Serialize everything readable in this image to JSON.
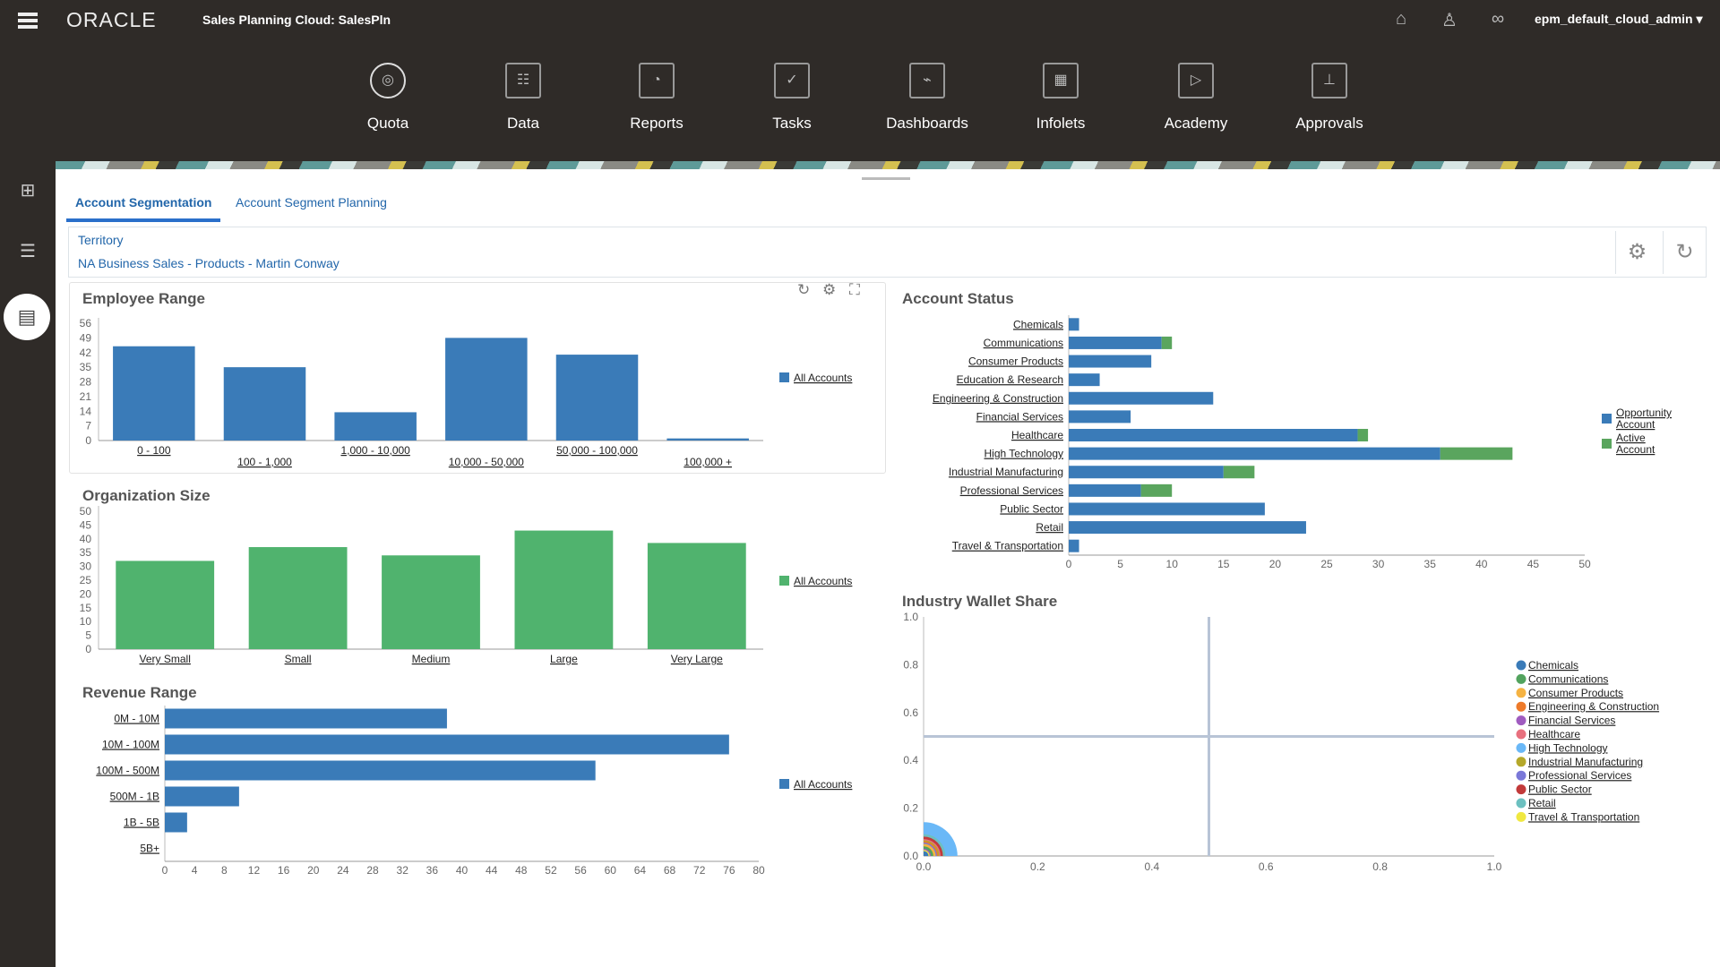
{
  "header": {
    "logo": "ORACLE",
    "app_title": "Sales Planning Cloud: SalesPln",
    "user": "epm_default_cloud_admin ▾",
    "icons": [
      "home-icon",
      "accessibility-icon",
      "navigator-icon"
    ]
  },
  "nav": [
    {
      "label": "Quota",
      "icon": "◎"
    },
    {
      "label": "Data",
      "icon": "☷"
    },
    {
      "label": "Reports",
      "icon": "◔"
    },
    {
      "label": "Tasks",
      "icon": "✓"
    },
    {
      "label": "Dashboards",
      "icon": "⌁"
    },
    {
      "label": "Infolets",
      "icon": "▦"
    },
    {
      "label": "Academy",
      "icon": "▷"
    },
    {
      "label": "Approvals",
      "icon": "⊥"
    }
  ],
  "tabs": [
    {
      "label": "Account Segmentation",
      "active": true
    },
    {
      "label": "Account Segment Planning",
      "active": false
    }
  ],
  "pov": {
    "label": "Territory",
    "value": "NA Business Sales - Products - Martin Conway"
  },
  "colors": {
    "blue": "#3a7bb8",
    "green": "#50b36e",
    "active_green": "#5aa55e"
  },
  "chart_data": [
    {
      "id": "employee",
      "type": "bar",
      "title": "Employee Range",
      "categories": [
        "0 - 100",
        "100 - 1,000",
        "1,000 - 10,000",
        "10,000 - 50,000",
        "50,000 - 100,000",
        "100,000 +"
      ],
      "series": [
        {
          "name": "All Accounts",
          "values": [
            45,
            35,
            13.5,
            49,
            41,
            1
          ]
        }
      ],
      "yticks": [
        0,
        7,
        14,
        21,
        28,
        35,
        42,
        49,
        56
      ],
      "ylim": [
        0,
        56
      ],
      "legend": "right"
    },
    {
      "id": "org",
      "type": "bar",
      "title": "Organization Size",
      "categories": [
        "Very Small",
        "Small",
        "Medium",
        "Large",
        "Very Large"
      ],
      "series": [
        {
          "name": "All Accounts",
          "values": [
            32,
            37,
            34,
            43,
            38.5
          ]
        }
      ],
      "yticks": [
        0,
        5,
        10,
        15,
        20,
        25,
        30,
        35,
        40,
        45,
        50
      ],
      "ylim": [
        0,
        50
      ],
      "legend": "right"
    },
    {
      "id": "revenue",
      "type": "bar",
      "orientation": "horizontal",
      "title": "Revenue Range",
      "categories": [
        "0M - 10M",
        "10M - 100M",
        "100M - 500M",
        "500M - 1B",
        "1B - 5B",
        "5B+"
      ],
      "series": [
        {
          "name": "All Accounts",
          "values": [
            38,
            76,
            58,
            10,
            3,
            0
          ]
        }
      ],
      "xticks": [
        0,
        4,
        8,
        12,
        16,
        20,
        24,
        28,
        32,
        36,
        40,
        44,
        48,
        52,
        56,
        60,
        64,
        68,
        72,
        76,
        80
      ],
      "xlim": [
        0,
        80
      ],
      "legend": "right"
    },
    {
      "id": "status",
      "type": "bar",
      "orientation": "horizontal",
      "stacked": true,
      "title": "Account Status",
      "categories": [
        "Chemicals",
        "Communications",
        "Consumer Products",
        "Education & Research",
        "Engineering & Construction",
        "Financial Services",
        "Healthcare",
        "High Technology",
        "Industrial Manufacturing",
        "Professional Services",
        "Public Sector",
        "Retail",
        "Travel & Transportation"
      ],
      "series": [
        {
          "name": "Opportunity Account",
          "values": [
            1,
            9,
            8,
            3,
            14,
            6,
            28,
            36,
            15,
            7,
            19,
            23,
            1
          ]
        },
        {
          "name": "Active Account",
          "values": [
            0,
            1,
            0,
            0,
            0,
            0,
            1,
            7,
            3,
            3,
            0,
            0,
            0
          ]
        }
      ],
      "xticks": [
        0,
        5,
        10,
        15,
        20,
        25,
        30,
        35,
        40,
        45,
        50
      ],
      "xlim": [
        0,
        50
      ],
      "legend": "right"
    },
    {
      "id": "wallet",
      "type": "scatter",
      "title": "Industry Wallet Share",
      "xticks": [
        "0.0",
        "0.2",
        "0.4",
        "0.6",
        "0.8",
        "1.0"
      ],
      "yticks": [
        "0.0",
        "0.2",
        "0.4",
        "0.6",
        "0.8",
        "1.0"
      ],
      "xlim": [
        0,
        1
      ],
      "ylim": [
        0,
        1
      ],
      "quadrant_lines": [
        0.5,
        0.5
      ],
      "legend": "right",
      "series": [
        {
          "name": "Chemicals",
          "color": "#3a7bb8",
          "x": 0,
          "y": 0,
          "size": 2
        },
        {
          "name": "Communications",
          "color": "#52a35e",
          "x": 0,
          "y": 0,
          "size": 4
        },
        {
          "name": "Consumer Products",
          "color": "#f5b342",
          "x": 0,
          "y": 0,
          "size": 5
        },
        {
          "name": "Engineering & Construction",
          "color": "#ee7a2a",
          "x": 0,
          "y": 0,
          "size": 6
        },
        {
          "name": "Financial Services",
          "color": "#a05cc0",
          "x": 0,
          "y": 0,
          "size": 3
        },
        {
          "name": "Healthcare",
          "color": "#e8707e",
          "x": 0,
          "y": 0,
          "size": 7
        },
        {
          "name": "High Technology",
          "color": "#6ab8f7",
          "x": 0,
          "y": 0,
          "size": 14
        },
        {
          "name": "Industrial Manufacturing",
          "color": "#b5a82a",
          "x": 0,
          "y": 0,
          "size": 6.5
        },
        {
          "name": "Professional Services",
          "color": "#7a78d8",
          "x": 0,
          "y": 0,
          "size": 5.5
        },
        {
          "name": "Public Sector",
          "color": "#c23a3a",
          "x": 0,
          "y": 0,
          "size": 8
        },
        {
          "name": "Retail",
          "color": "#6cc0c0",
          "x": 0,
          "y": 0,
          "size": 9
        },
        {
          "name": "Travel & Transportation",
          "color": "#f0e840",
          "x": 0,
          "y": 0,
          "size": 2.5
        }
      ]
    }
  ]
}
